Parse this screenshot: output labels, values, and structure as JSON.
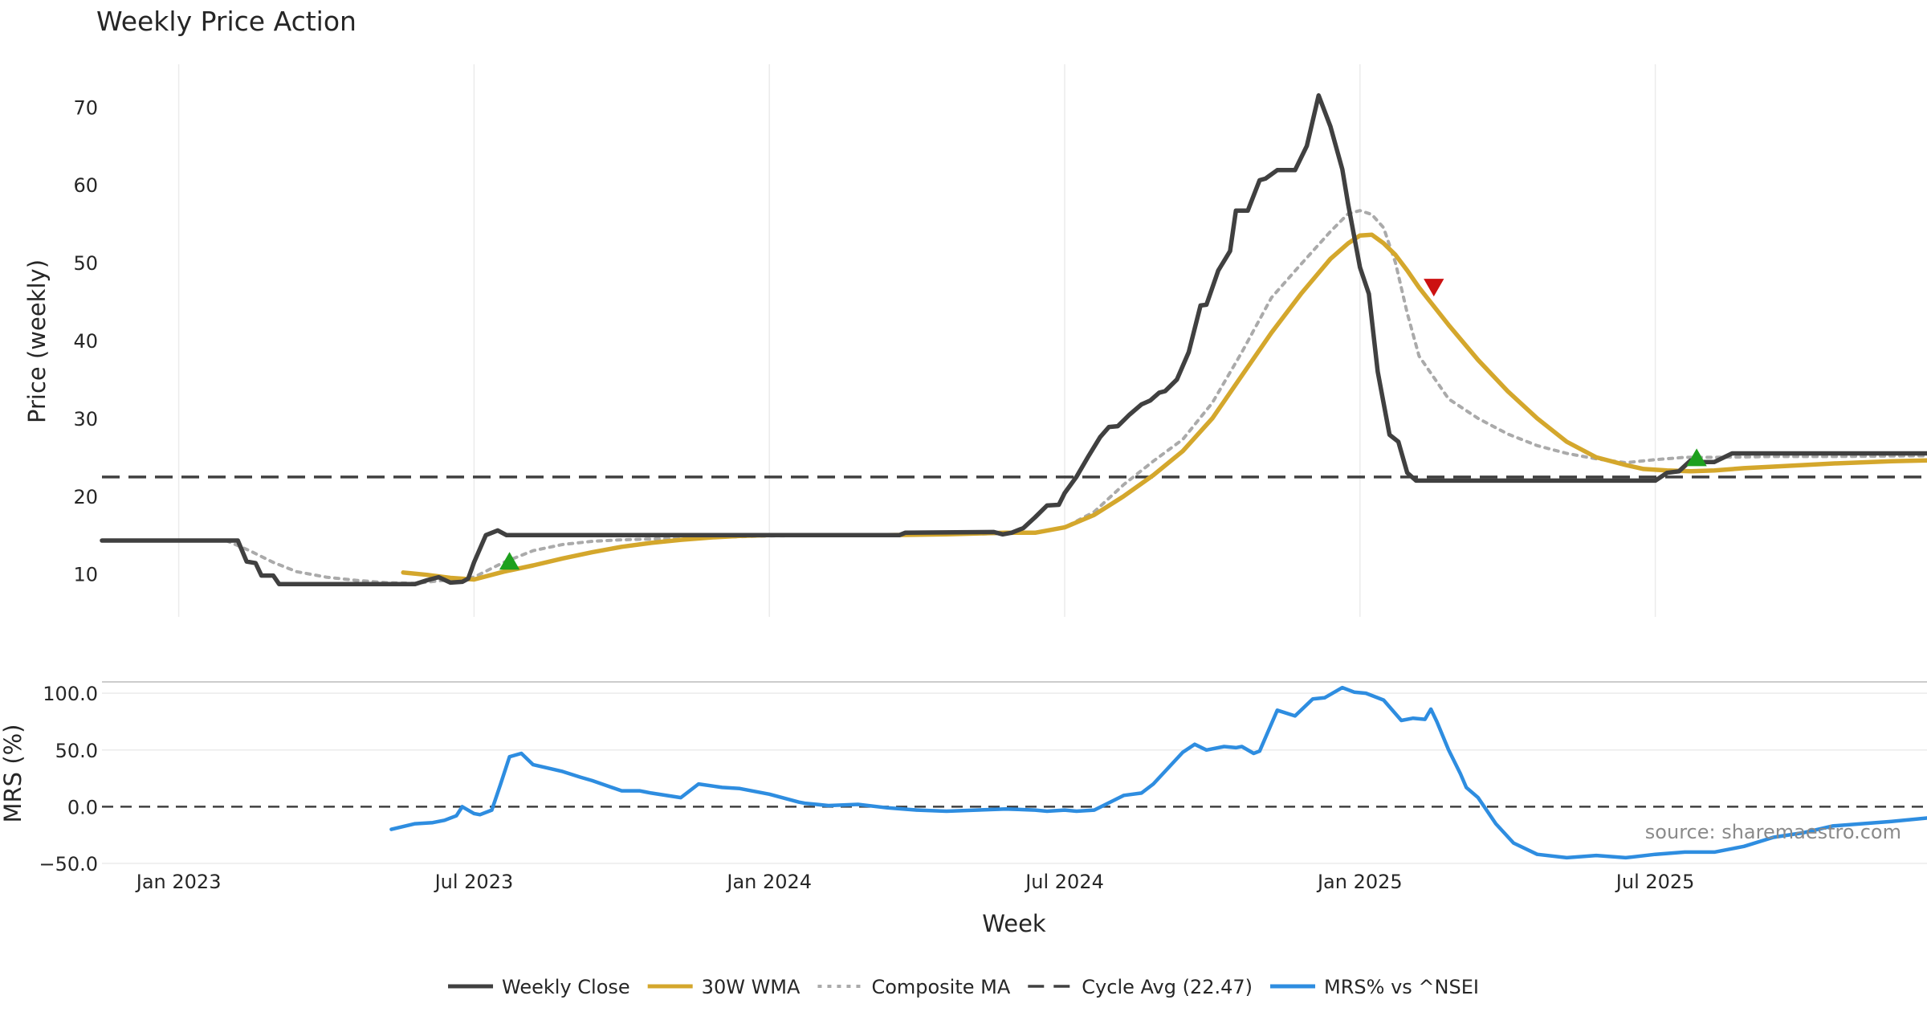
{
  "chart_data": [
    {
      "type": "line",
      "title": "Weekly Price Action",
      "ylabel": "Price (weekly)",
      "xlabel": "",
      "ylim": [
        4.5,
        75.5
      ],
      "yticks": [
        10,
        20,
        30,
        40,
        50,
        60,
        70
      ],
      "ytick_labels": [
        "10",
        "20",
        "30",
        "40",
        "50",
        "60",
        "70"
      ],
      "x_range": [
        2022.87,
        2025.96
      ],
      "x_grid": [
        2023.0,
        2023.5,
        2024.0,
        2024.5,
        2025.0,
        2025.5
      ],
      "reference_lines": [
        {
          "name": "Cycle Avg (22.47)",
          "value": 22.47
        }
      ],
      "series": [
        {
          "name": "Weekly Close",
          "color": "#404040",
          "x": [
            2022.87,
            2023.08,
            2023.1,
            2023.115,
            2023.13,
            2023.14,
            2023.16,
            2023.17,
            2023.19,
            2023.4,
            2023.42,
            2023.44,
            2023.46,
            2023.48,
            2023.49,
            2023.5,
            2023.52,
            2023.54,
            2023.555,
            2023.57,
            2023.59,
            2024.0,
            2024.22,
            2024.23,
            2024.38,
            2024.395,
            2024.41,
            2024.43,
            2024.45,
            2024.47,
            2024.49,
            2024.5,
            2024.52,
            2024.54,
            2024.56,
            2024.575,
            2024.59,
            2024.61,
            2024.63,
            2024.645,
            2024.66,
            2024.67,
            2024.69,
            2024.71,
            2024.73,
            2024.74,
            2024.76,
            2024.78,
            2024.79,
            2024.81,
            2024.83,
            2024.84,
            2024.86,
            2024.87,
            2024.89,
            2024.91,
            2024.93,
            2024.95,
            2024.97,
            2024.98,
            2025.0,
            2025.015,
            2025.03,
            2025.05,
            2025.065,
            2025.08,
            2025.095,
            2025.11,
            2025.125,
            2025.14,
            2025.16,
            2025.175,
            2025.19,
            2025.21,
            2025.23,
            2025.25,
            2025.27,
            2025.3,
            2025.5,
            2025.52,
            2025.54,
            2025.56,
            2025.58,
            2025.6,
            2025.63,
            2025.65,
            2025.96
          ],
          "y": [
            14.3,
            14.3,
            14.3,
            11.6,
            11.4,
            9.8,
            9.8,
            8.7,
            8.7,
            8.7,
            9.2,
            9.6,
            8.9,
            9.0,
            9.4,
            11.5,
            15.0,
            15.6,
            15.0,
            15.0,
            15.0,
            15.0,
            15.0,
            15.3,
            15.4,
            15.1,
            15.3,
            15.9,
            17.3,
            18.8,
            18.9,
            20.4,
            22.5,
            25.1,
            27.6,
            28.9,
            29.0,
            30.5,
            31.8,
            32.3,
            33.3,
            33.5,
            35.0,
            38.5,
            44.5,
            44.6,
            49.0,
            51.5,
            56.7,
            56.7,
            60.6,
            60.8,
            61.9,
            61.9,
            61.9,
            65.0,
            71.5,
            67.5,
            62.0,
            57.5,
            49.4,
            46.0,
            36.0,
            27.9,
            27.0,
            23.0,
            22.0,
            22.0,
            22.0,
            22.0,
            22.0,
            22.0,
            22.0,
            22.0,
            22.0,
            22.0,
            22.0,
            22.0,
            22.0,
            23.0,
            23.2,
            24.6,
            24.4,
            24.4,
            25.5,
            25.5,
            25.5
          ]
        },
        {
          "name": "30W WMA",
          "color": "#d4a72c",
          "x": [
            2023.38,
            2023.42,
            2023.46,
            2023.5,
            2023.55,
            2023.6,
            2023.65,
            2023.7,
            2023.75,
            2023.8,
            2023.85,
            2023.9,
            2023.95,
            2024.0,
            2024.1,
            2024.2,
            2024.3,
            2024.4,
            2024.45,
            2024.5,
            2024.55,
            2024.6,
            2024.65,
            2024.7,
            2024.75,
            2024.8,
            2024.85,
            2024.9,
            2024.95,
            2024.98,
            2025.0,
            2025.02,
            2025.04,
            2025.06,
            2025.08,
            2025.1,
            2025.15,
            2025.2,
            2025.25,
            2025.3,
            2025.35,
            2025.4,
            2025.45,
            2025.48,
            2025.52,
            2025.56,
            2025.6,
            2025.65,
            2025.7,
            2025.8,
            2025.9,
            2025.96
          ],
          "y": [
            10.2,
            9.9,
            9.5,
            9.3,
            10.3,
            11.1,
            12.0,
            12.8,
            13.5,
            14.0,
            14.4,
            14.7,
            14.9,
            15.0,
            15.0,
            15.0,
            15.1,
            15.3,
            15.3,
            16.0,
            17.6,
            20.0,
            22.7,
            25.8,
            30.0,
            35.5,
            41.0,
            46.0,
            50.5,
            52.5,
            53.5,
            53.6,
            52.5,
            51.0,
            49.0,
            46.8,
            42.0,
            37.5,
            33.5,
            30.0,
            27.0,
            25.0,
            24.0,
            23.5,
            23.3,
            23.2,
            23.3,
            23.6,
            23.8,
            24.2,
            24.5,
            24.6
          ]
        },
        {
          "name": "Composite MA",
          "color": "#aaaaaa",
          "x": [
            2022.95,
            2023.08,
            2023.12,
            2023.16,
            2023.2,
            2023.25,
            2023.3,
            2023.35,
            2023.4,
            2023.45,
            2023.5,
            2023.55,
            2023.6,
            2023.65,
            2023.7,
            2023.75,
            2023.8,
            2023.9,
            2024.0,
            2024.2,
            2024.3,
            2024.4,
            2024.45,
            2024.5,
            2024.55,
            2024.6,
            2024.65,
            2024.7,
            2024.75,
            2024.8,
            2024.85,
            2024.9,
            2024.95,
            2024.98,
            2025.0,
            2025.02,
            2025.04,
            2025.06,
            2025.08,
            2025.1,
            2025.15,
            2025.2,
            2025.25,
            2025.3,
            2025.35,
            2025.4,
            2025.45,
            2025.5,
            2025.55,
            2025.6,
            2025.7,
            2025.8,
            2025.96
          ],
          "y": [
            14.3,
            14.3,
            13.0,
            11.5,
            10.3,
            9.6,
            9.2,
            8.9,
            8.8,
            9.2,
            9.6,
            11.5,
            13.0,
            13.8,
            14.2,
            14.4,
            14.5,
            14.7,
            14.9,
            15.0,
            15.1,
            15.2,
            15.3,
            16.0,
            18.0,
            21.5,
            24.5,
            27.3,
            32.0,
            38.5,
            45.5,
            49.8,
            54.0,
            56.3,
            56.7,
            56.2,
            54.5,
            50.0,
            43.5,
            38.0,
            32.5,
            30.0,
            28.0,
            26.5,
            25.5,
            24.8,
            24.3,
            24.7,
            25.0,
            25.0,
            25.1,
            25.1,
            25.2
          ]
        }
      ],
      "markers": [
        {
          "type": "buy",
          "shape": "up-triangle",
          "color": "#1ea01e",
          "x": 2023.56,
          "y": 11.7
        },
        {
          "type": "sell",
          "shape": "down-triangle",
          "color": "#cc1111",
          "x": 2025.125,
          "y": 46.8
        },
        {
          "type": "buy",
          "shape": "up-triangle",
          "color": "#1ea01e",
          "x": 2025.57,
          "y": 25.0
        }
      ]
    },
    {
      "type": "line",
      "title": "",
      "ylabel": "MRS (%)",
      "xlabel": "Week",
      "ylim": [
        -50,
        110
      ],
      "yticks": [
        -50,
        0,
        50,
        100
      ],
      "ytick_labels": [
        "−50.0",
        "0.0",
        "50.0",
        "100.0"
      ],
      "x_ticks": [
        2023.0,
        2023.5,
        2024.0,
        2024.5,
        2025.0,
        2025.5
      ],
      "x_tick_labels": [
        "Jan 2023",
        "Jul 2023",
        "Jan 2024",
        "Jul 2024",
        "Jan 2025",
        "Jul 2025"
      ],
      "reference_lines": [
        {
          "name": "zero",
          "value": 0
        }
      ],
      "series": [
        {
          "name": "MRS% vs ^NSEI",
          "color": "#2e8de0",
          "x": [
            2023.36,
            2023.4,
            2023.43,
            2023.45,
            2023.47,
            2023.48,
            2023.5,
            2023.51,
            2023.53,
            2023.545,
            2023.56,
            2023.58,
            2023.6,
            2023.65,
            2023.68,
            2023.7,
            2023.75,
            2023.78,
            2023.79,
            2023.8,
            2023.85,
            2023.88,
            2023.92,
            2023.95,
            2024.0,
            2024.05,
            2024.06,
            2024.1,
            2024.15,
            2024.2,
            2024.25,
            2024.3,
            2024.35,
            2024.4,
            2024.45,
            2024.47,
            2024.5,
            2024.52,
            2024.55,
            2024.6,
            2024.63,
            2024.65,
            2024.7,
            2024.72,
            2024.74,
            2024.77,
            2024.79,
            2024.8,
            2024.82,
            2024.83,
            2024.86,
            2024.89,
            2024.92,
            2024.94,
            2024.97,
            2024.99,
            2025.01,
            2025.04,
            2025.07,
            2025.09,
            2025.11,
            2025.12,
            2025.13,
            2025.15,
            2025.17,
            2025.18,
            2025.2,
            2025.23,
            2025.26,
            2025.3,
            2025.35,
            2025.4,
            2025.45,
            2025.5,
            2025.55,
            2025.58,
            2025.6,
            2025.65,
            2025.7,
            2025.75,
            2025.8,
            2025.9,
            2025.96
          ],
          "y": [
            -20,
            -15,
            -14,
            -12,
            -8,
            0,
            -6,
            -7,
            -3,
            20,
            44,
            47,
            37,
            31,
            26,
            23,
            14,
            14,
            13,
            12,
            8,
            20,
            17,
            16,
            11,
            4,
            3,
            1,
            2,
            -1,
            -3,
            -4,
            -3,
            -2,
            -3,
            -4,
            -3,
            -4,
            -3,
            10,
            12,
            20,
            48,
            55,
            50,
            53,
            52,
            53,
            47,
            49,
            85,
            80,
            95,
            96,
            105,
            101,
            100,
            94,
            76,
            78,
            77,
            86,
            75,
            50,
            29,
            17,
            8,
            -15,
            -32,
            -42,
            -45,
            -43,
            -45,
            -42,
            -40,
            -40,
            -40,
            -35,
            -27,
            -23,
            -17,
            -13,
            -10
          ]
        }
      ]
    }
  ],
  "legend": {
    "placement": "bottom-center",
    "entries": [
      {
        "label": "Weekly Close",
        "style": "solid",
        "color": "#404040"
      },
      {
        "label": "30W WMA",
        "style": "solid",
        "color": "#d4a72c"
      },
      {
        "label": "Composite MA",
        "style": "dotted",
        "color": "#aaaaaa"
      },
      {
        "label": "Cycle Avg (22.47)",
        "style": "dashed",
        "color": "#404040"
      },
      {
        "label": "MRS% vs ^NSEI",
        "style": "solid",
        "color": "#2e8de0"
      }
    ]
  },
  "source_text": "source: sharemaestro.com"
}
